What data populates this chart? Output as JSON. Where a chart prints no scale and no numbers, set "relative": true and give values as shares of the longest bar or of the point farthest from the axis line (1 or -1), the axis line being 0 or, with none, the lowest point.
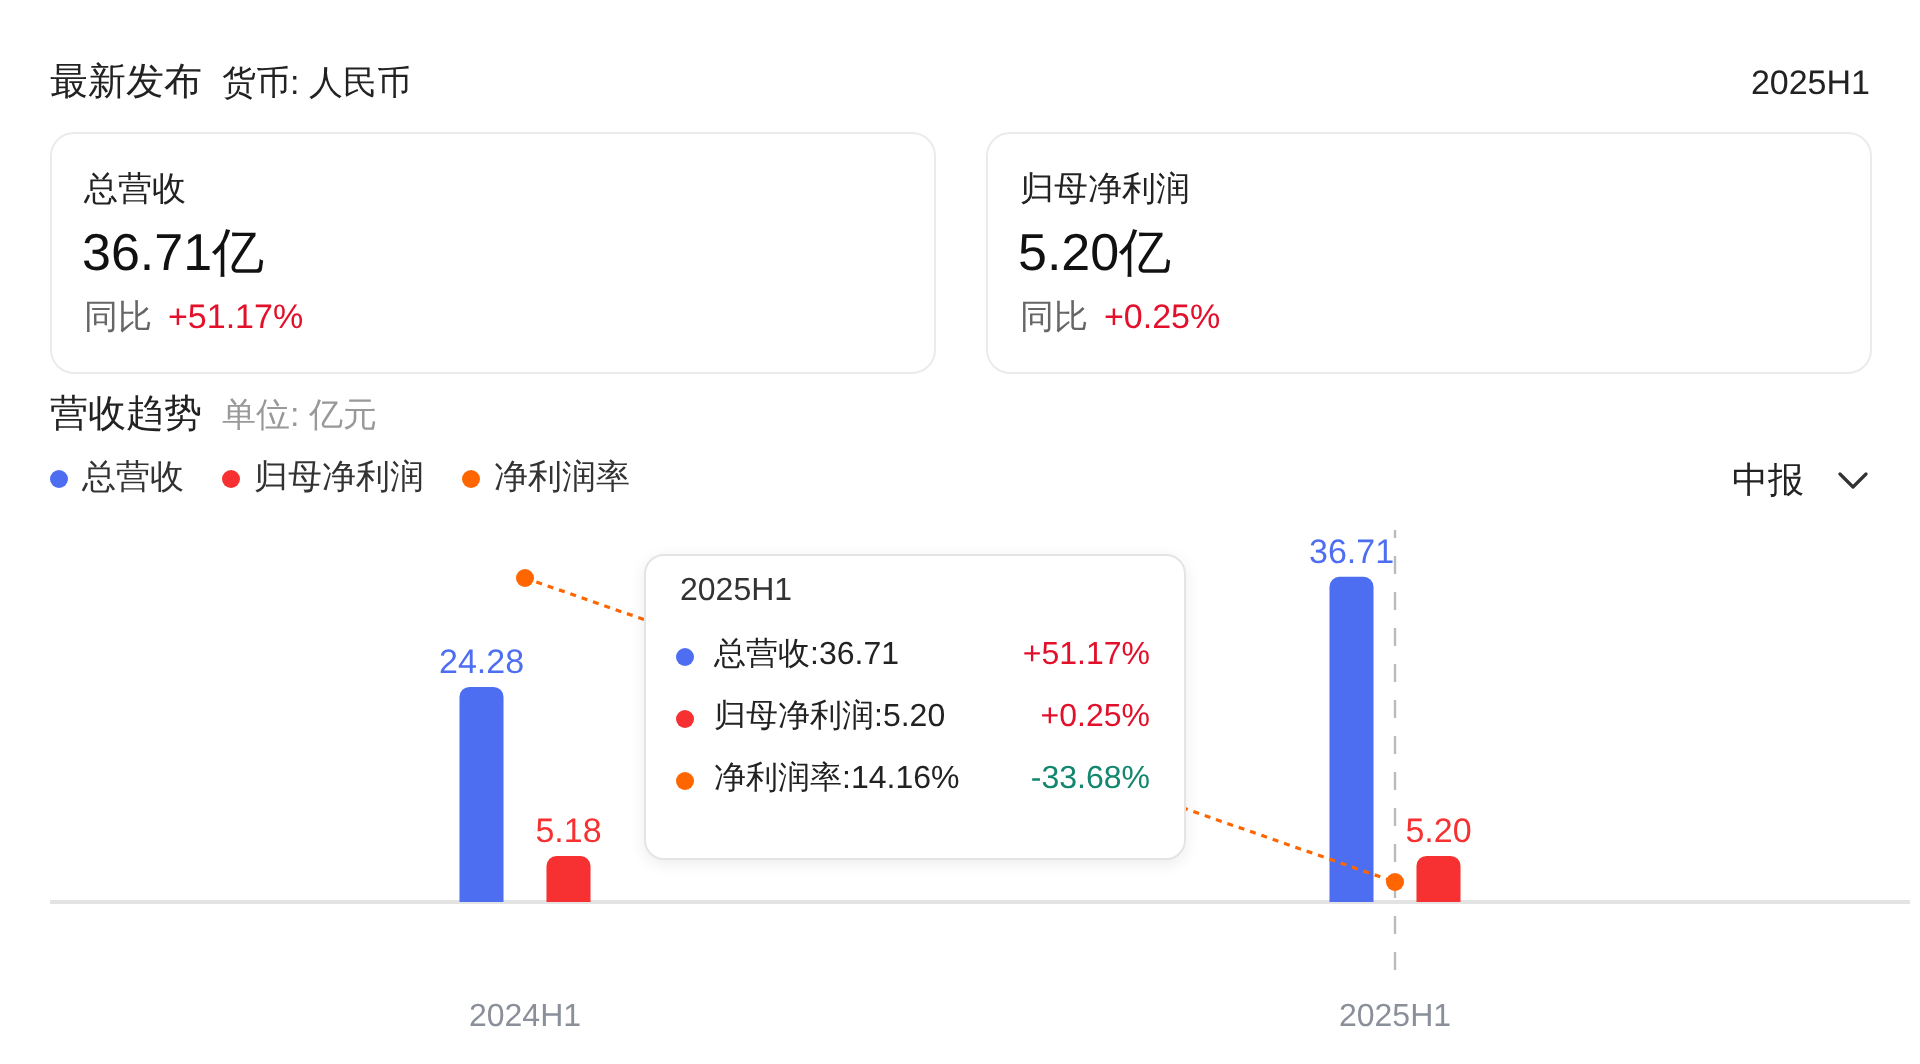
{
  "chart_data": [
    {
      "type": "other",
      "title": "最新发布",
      "subtitle": "货币: 人民币",
      "annotations": [
        "2025H1",
        "总营收",
        "36.71亿",
        "同比",
        "+51.17%",
        "归母净利润",
        "5.20亿",
        "同比",
        "+0.25%"
      ]
    },
    {
      "type": "bar",
      "title": "营收趋势",
      "subtitle": "单位: 亿元",
      "categories": [
        "2024H1",
        "2025H1"
      ],
      "series": [
        {
          "name": "总营收",
          "color": "#4e6ef2",
          "values": [
            24.28,
            36.71
          ],
          "value_labels": [
            "24.28",
            "36.71"
          ]
        },
        {
          "name": "归母净利润",
          "color": "#f73131",
          "values": [
            5.18,
            5.2
          ],
          "value_labels": [
            "5.18",
            "5.20"
          ]
        }
      ],
      "ylim": [
        0,
        42
      ],
      "tick_labels": "x",
      "legend": "top left",
      "ref_lines": [
        {
          "axis": "x",
          "value": "2025H1",
          "line_style": "dashed",
          "color": "#bbbbbb"
        }
      ],
      "annotations": [
        "中报",
        "2025H1",
        "总营收:36.71",
        "+51.17%",
        "归母净利润:5.20",
        "+0.25%",
        "净利润率:14.16%",
        "-33.68%"
      ]
    },
    {
      "type": "line",
      "relative": true,
      "categories": [
        null,
        null
      ],
      "series": [
        {
          "name": "净利润率",
          "color": "#ff6600",
          "values": [
            1,
            0
          ]
        }
      ],
      "tick_labels": false,
      "marker": "circle",
      "line_style": "dotted"
    }
  ]
}
